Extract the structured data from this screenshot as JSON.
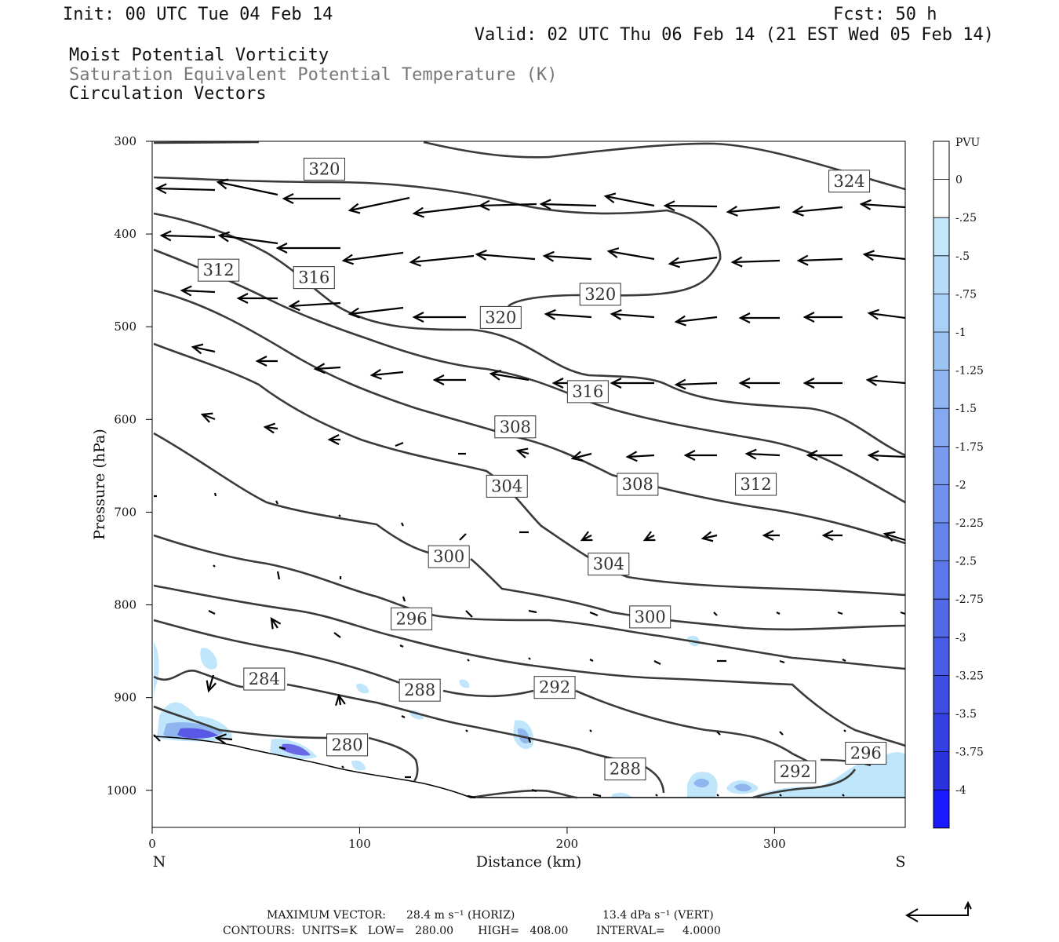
{
  "header": {
    "init": "Init: 00 UTC Tue 04 Feb 14",
    "fcst": "Fcst:   50 h",
    "valid": "Valid: 02 UTC Thu 06 Feb 14 (21 EST Wed 05 Feb 14)",
    "field1": "Moist Potential Vorticity",
    "field2": "Saturation Equivalent Potential Temperature (K)",
    "field3": "Circulation Vectors"
  },
  "footer": {
    "max_vector_label": "MAXIMUM VECTOR:",
    "max_horiz": "28.4 m s⁻¹ (HORIZ)",
    "max_vert": "13.4 dPa s⁻¹ (VERT)",
    "contours_line": "CONTOURS:  UNITS=K   LOW=   280.00       HIGH=   408.00        INTERVAL=     4.0000"
  },
  "colors": {
    "contour": "#3a3a3a",
    "vector": "#000000",
    "mpv_light": "#bfe6fb",
    "mpv_mid": "#8fb6ef",
    "mpv_dark": "#5a58e6",
    "terrain": "#000000"
  },
  "chart_data": {
    "type": "cross-section",
    "xlabel": "Distance (km)",
    "ylabel": "Pressure (hPa)",
    "xlim": [
      0,
      363
    ],
    "ylim": [
      1040,
      300
    ],
    "x_ticks": [
      0,
      100,
      200,
      300
    ],
    "y_ticks": [
      300,
      400,
      500,
      600,
      700,
      800,
      900,
      1000
    ],
    "endpoints": {
      "left": "N",
      "right": "S"
    },
    "colorbar": {
      "label": "PVU",
      "ticks": [
        "0",
        "-.25",
        "-.5",
        "-.75",
        "-1",
        "-1.25",
        "-1.5",
        "-1.75",
        "-2",
        "-2.25",
        "-2.5",
        "-2.75",
        "-3",
        "-3.25",
        "-3.5",
        "-3.75",
        "-4"
      ],
      "colors": [
        "#ffffff",
        "#ffffff",
        "#c3e7fb",
        "#b6dcf9",
        "#a9d0f7",
        "#9cc4f5",
        "#8fb6f3",
        "#84a9f1",
        "#7a9bf0",
        "#7091ee",
        "#6685ec",
        "#5c77ea",
        "#526ae8",
        "#485ce6",
        "#3e4ee4",
        "#3440e2",
        "#2a32e0",
        "#1a1aff"
      ]
    },
    "contour_labels": [
      {
        "text": "324",
        "x": 336,
        "p": 343
      },
      {
        "text": "320",
        "x": 83,
        "p": 330
      },
      {
        "text": "320",
        "x": 216,
        "p": 465
      },
      {
        "text": "320",
        "x": 168,
        "p": 490
      },
      {
        "text": "316",
        "x": 78,
        "p": 447
      },
      {
        "text": "316",
        "x": 210,
        "p": 570
      },
      {
        "text": "312",
        "x": 32,
        "p": 439
      },
      {
        "text": "312",
        "x": 291,
        "p": 670
      },
      {
        "text": "308",
        "x": 175,
        "p": 608
      },
      {
        "text": "308",
        "x": 234,
        "p": 670
      },
      {
        "text": "304",
        "x": 171,
        "p": 672
      },
      {
        "text": "304",
        "x": 220,
        "p": 756
      },
      {
        "text": "300",
        "x": 143,
        "p": 748
      },
      {
        "text": "300",
        "x": 240,
        "p": 813
      },
      {
        "text": "296",
        "x": 125,
        "p": 815
      },
      {
        "text": "296",
        "x": 344,
        "p": 960
      },
      {
        "text": "292",
        "x": 194,
        "p": 889
      },
      {
        "text": "292",
        "x": 310,
        "p": 980
      },
      {
        "text": "288",
        "x": 129,
        "p": 892
      },
      {
        "text": "288",
        "x": 228,
        "p": 977
      },
      {
        "text": "284",
        "x": 54,
        "p": 880
      },
      {
        "text": "280",
        "x": 94,
        "p": 951
      }
    ]
  }
}
